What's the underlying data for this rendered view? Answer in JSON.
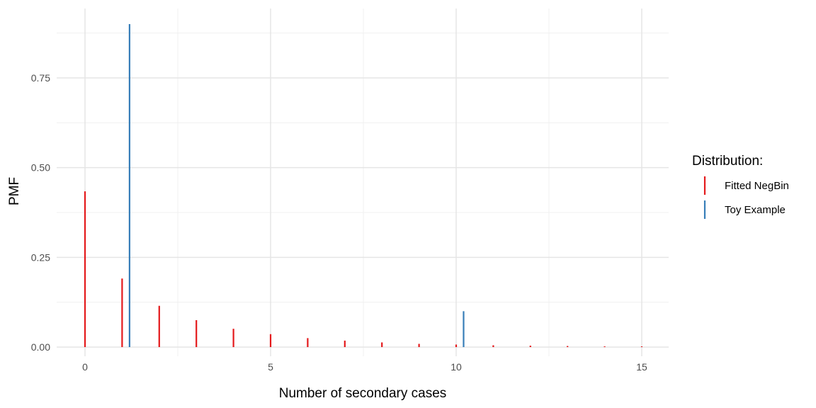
{
  "chart_data": {
    "type": "bar",
    "xlabel": "Number of secondary cases",
    "ylabel": "PMF",
    "xlim": [
      -0.5,
      15.75
    ],
    "ylim": [
      -0.0125,
      0.9
    ],
    "x_ticks": [
      0,
      5,
      10,
      15
    ],
    "x_minor_ticks": [
      2.5,
      7.5,
      12.5
    ],
    "x_tick_labels": [
      "0",
      "5",
      "10",
      "15"
    ],
    "y_ticks": [
      0.0,
      0.25,
      0.5,
      0.75
    ],
    "y_minor_ticks": [
      0.125,
      0.375,
      0.625,
      0.875
    ],
    "y_tick_labels": [
      "0.00",
      "0.25",
      "0.50",
      "0.75"
    ],
    "grid": true,
    "legend": {
      "title": "Distribution:",
      "position": "right"
    },
    "series": [
      {
        "name": "Fitted NegBin",
        "color": "#e41a1c",
        "x": [
          0,
          1,
          2,
          3,
          4,
          5,
          6,
          7,
          8,
          9,
          10,
          11,
          12,
          13,
          14,
          15
        ],
        "values": [
          0.434,
          0.191,
          0.115,
          0.075,
          0.051,
          0.036,
          0.025,
          0.018,
          0.013,
          0.009,
          0.007,
          0.005,
          0.004,
          0.003,
          0.002,
          0.002
        ]
      },
      {
        "name": "Toy Example",
        "color": "#377eb8",
        "x": [
          1.2,
          10.2
        ],
        "values": [
          0.9,
          0.1
        ]
      }
    ]
  }
}
